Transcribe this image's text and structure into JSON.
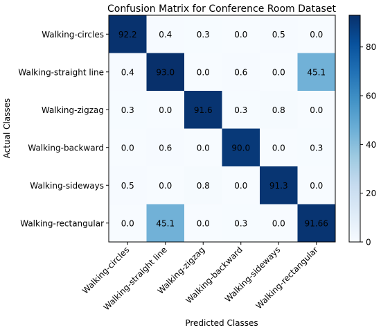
{
  "chart_data": {
    "type": "heatmap",
    "title": "Confusion Matrix for Conference Room Dataset",
    "xlabel": "Predicted Classes",
    "ylabel": "Actual Classes",
    "categories": [
      "Walking-circles",
      "Walking-straight line",
      "Walking-zigzag",
      "Walking-backward",
      "Walking-sideways",
      "Walking-rectangular"
    ],
    "cell_labels": [
      [
        "92.2",
        "0.4",
        "0.3",
        "0.0",
        "0.5",
        "0.0"
      ],
      [
        "0.4",
        "93.0",
        "0.0",
        "0.6",
        "0.0",
        "45.1"
      ],
      [
        "0.3",
        "0.0",
        "91.6",
        "0.3",
        "0.8",
        "0.0"
      ],
      [
        "0.0",
        "0.6",
        "0.0",
        "90.0",
        "0.0",
        "0.3"
      ],
      [
        "0.5",
        "0.0",
        "0.8",
        "0.0",
        "91.3",
        "0.0"
      ],
      [
        "0.0",
        "45.1",
        "0.0",
        "0.3",
        "0.0",
        "91.66"
      ]
    ],
    "values": [
      [
        92.2,
        0.4,
        0.3,
        0.0,
        0.5,
        0.0
      ],
      [
        0.4,
        93.0,
        0.0,
        0.6,
        0.0,
        45.1
      ],
      [
        0.3,
        0.0,
        91.6,
        0.3,
        0.8,
        0.0
      ],
      [
        0.0,
        0.6,
        0.0,
        90.0,
        0.0,
        0.3
      ],
      [
        0.5,
        0.0,
        0.8,
        0.0,
        91.3,
        0.0
      ],
      [
        0.0,
        45.1,
        0.0,
        0.3,
        0.0,
        91.66
      ]
    ],
    "colormap": "Blues",
    "colorbar": {
      "range": [
        0,
        93
      ],
      "ticks": [
        0,
        20,
        40,
        60,
        80
      ],
      "tick_labels": [
        "0",
        "20",
        "40",
        "60",
        "80"
      ]
    },
    "grid": false
  }
}
